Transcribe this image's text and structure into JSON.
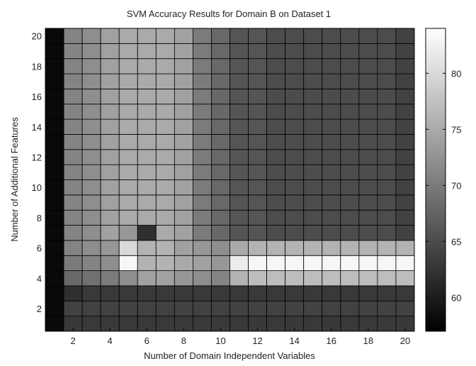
{
  "chart_data": {
    "type": "heatmap",
    "title": "SVM Accuracy Results for Domain B on Dataset 1",
    "xlabel": "Number of Domain Independent Variables",
    "ylabel": "Number of Additional Features",
    "x_range": [
      1,
      20
    ],
    "y_range": [
      1,
      20
    ],
    "x_ticks": [
      "2",
      "4",
      "6",
      "8",
      "10",
      "12",
      "14",
      "16",
      "18",
      "20"
    ],
    "y_ticks": [
      "2",
      "4",
      "6",
      "8",
      "10",
      "12",
      "14",
      "16",
      "18",
      "20"
    ],
    "colorbar": {
      "range": [
        57,
        84
      ],
      "ticks": [
        "60",
        "65",
        "70",
        "75",
        "80"
      ],
      "colormap": "gray"
    },
    "grid": true,
    "rows": [
      {
        "y": 1,
        "values": [
          58,
          63,
          63,
          63,
          63,
          63,
          63,
          63,
          63,
          63,
          63,
          63,
          63,
          63,
          63,
          63,
          63,
          63,
          63,
          63
        ]
      },
      {
        "y": 2,
        "values": [
          58,
          64,
          64,
          64,
          64,
          64,
          64,
          64,
          64,
          64,
          64,
          64,
          64,
          64,
          64,
          64,
          64,
          64,
          64,
          64
        ]
      },
      {
        "y": 3,
        "values": [
          58,
          62,
          63,
          63,
          63,
          63,
          63,
          63,
          63,
          63,
          63,
          63,
          63,
          63,
          63,
          63,
          63,
          63,
          63,
          63
        ]
      },
      {
        "y": 4,
        "values": [
          58,
          68,
          69,
          70,
          72,
          74,
          74,
          73,
          72,
          71,
          76,
          77,
          77,
          77,
          77,
          77,
          77,
          77,
          77,
          77
        ]
      },
      {
        "y": 5,
        "values": [
          58,
          70,
          71,
          72,
          83,
          76,
          76,
          75,
          74,
          73,
          82,
          83,
          83,
          83,
          83,
          83,
          83,
          83,
          83,
          83
        ]
      },
      {
        "y": 6,
        "values": [
          58,
          71,
          72,
          73,
          80,
          76,
          76,
          74,
          73,
          72,
          75,
          76,
          76,
          76,
          76,
          76,
          76,
          76,
          76,
          76
        ]
      },
      {
        "y": 7,
        "values": [
          58,
          71,
          72,
          74,
          73,
          62,
          75,
          74,
          70,
          68,
          66,
          66,
          65,
          65,
          65,
          65,
          65,
          65,
          65,
          64
        ]
      },
      {
        "y": 8,
        "values": [
          58,
          71,
          72,
          74,
          75,
          75,
          75,
          74,
          70,
          68,
          66,
          66,
          65,
          65,
          65,
          65,
          65,
          65,
          65,
          64
        ]
      },
      {
        "y": 9,
        "values": [
          58,
          71,
          72,
          74,
          75,
          75,
          75,
          74,
          70,
          68,
          66,
          66,
          65,
          65,
          65,
          65,
          65,
          65,
          65,
          64
        ]
      },
      {
        "y": 10,
        "values": [
          58,
          71,
          72,
          74,
          75,
          75,
          75,
          74,
          70,
          68,
          66,
          66,
          65,
          65,
          65,
          65,
          65,
          65,
          65,
          64
        ]
      },
      {
        "y": 11,
        "values": [
          58,
          71,
          72,
          74,
          75,
          75,
          75,
          74,
          70,
          68,
          66,
          66,
          65,
          65,
          65,
          65,
          65,
          65,
          65,
          64
        ]
      },
      {
        "y": 12,
        "values": [
          58,
          71,
          72,
          74,
          75,
          75,
          75,
          74,
          70,
          68,
          66,
          66,
          65,
          65,
          65,
          65,
          65,
          65,
          65,
          64
        ]
      },
      {
        "y": 13,
        "values": [
          58,
          71,
          72,
          74,
          75,
          75,
          75,
          74,
          70,
          68,
          66,
          66,
          65,
          65,
          65,
          65,
          65,
          65,
          65,
          64
        ]
      },
      {
        "y": 14,
        "values": [
          58,
          71,
          72,
          74,
          75,
          75,
          75,
          74,
          70,
          68,
          66,
          66,
          65,
          65,
          65,
          65,
          65,
          65,
          65,
          64
        ]
      },
      {
        "y": 15,
        "values": [
          58,
          71,
          72,
          74,
          75,
          75,
          75,
          74,
          70,
          68,
          66,
          66,
          65,
          65,
          65,
          65,
          65,
          65,
          65,
          64
        ]
      },
      {
        "y": 16,
        "values": [
          58,
          71,
          72,
          74,
          75,
          75,
          75,
          74,
          70,
          68,
          66,
          66,
          65,
          65,
          65,
          65,
          65,
          65,
          65,
          64
        ]
      },
      {
        "y": 17,
        "values": [
          58,
          71,
          72,
          74,
          75,
          75,
          75,
          74,
          70,
          68,
          66,
          66,
          65,
          65,
          65,
          65,
          65,
          65,
          65,
          64
        ]
      },
      {
        "y": 18,
        "values": [
          58,
          71,
          72,
          74,
          75,
          75,
          75,
          74,
          70,
          68,
          66,
          66,
          65,
          65,
          65,
          65,
          65,
          65,
          65,
          64
        ]
      },
      {
        "y": 19,
        "values": [
          58,
          71,
          72,
          74,
          75,
          75,
          75,
          74,
          70,
          68,
          66,
          66,
          65,
          65,
          65,
          65,
          65,
          65,
          65,
          64
        ]
      },
      {
        "y": 20,
        "values": [
          58,
          71,
          72,
          74,
          75,
          75,
          75,
          74,
          70,
          68,
          66,
          66,
          65,
          65,
          65,
          65,
          65,
          65,
          65,
          64
        ]
      }
    ]
  }
}
